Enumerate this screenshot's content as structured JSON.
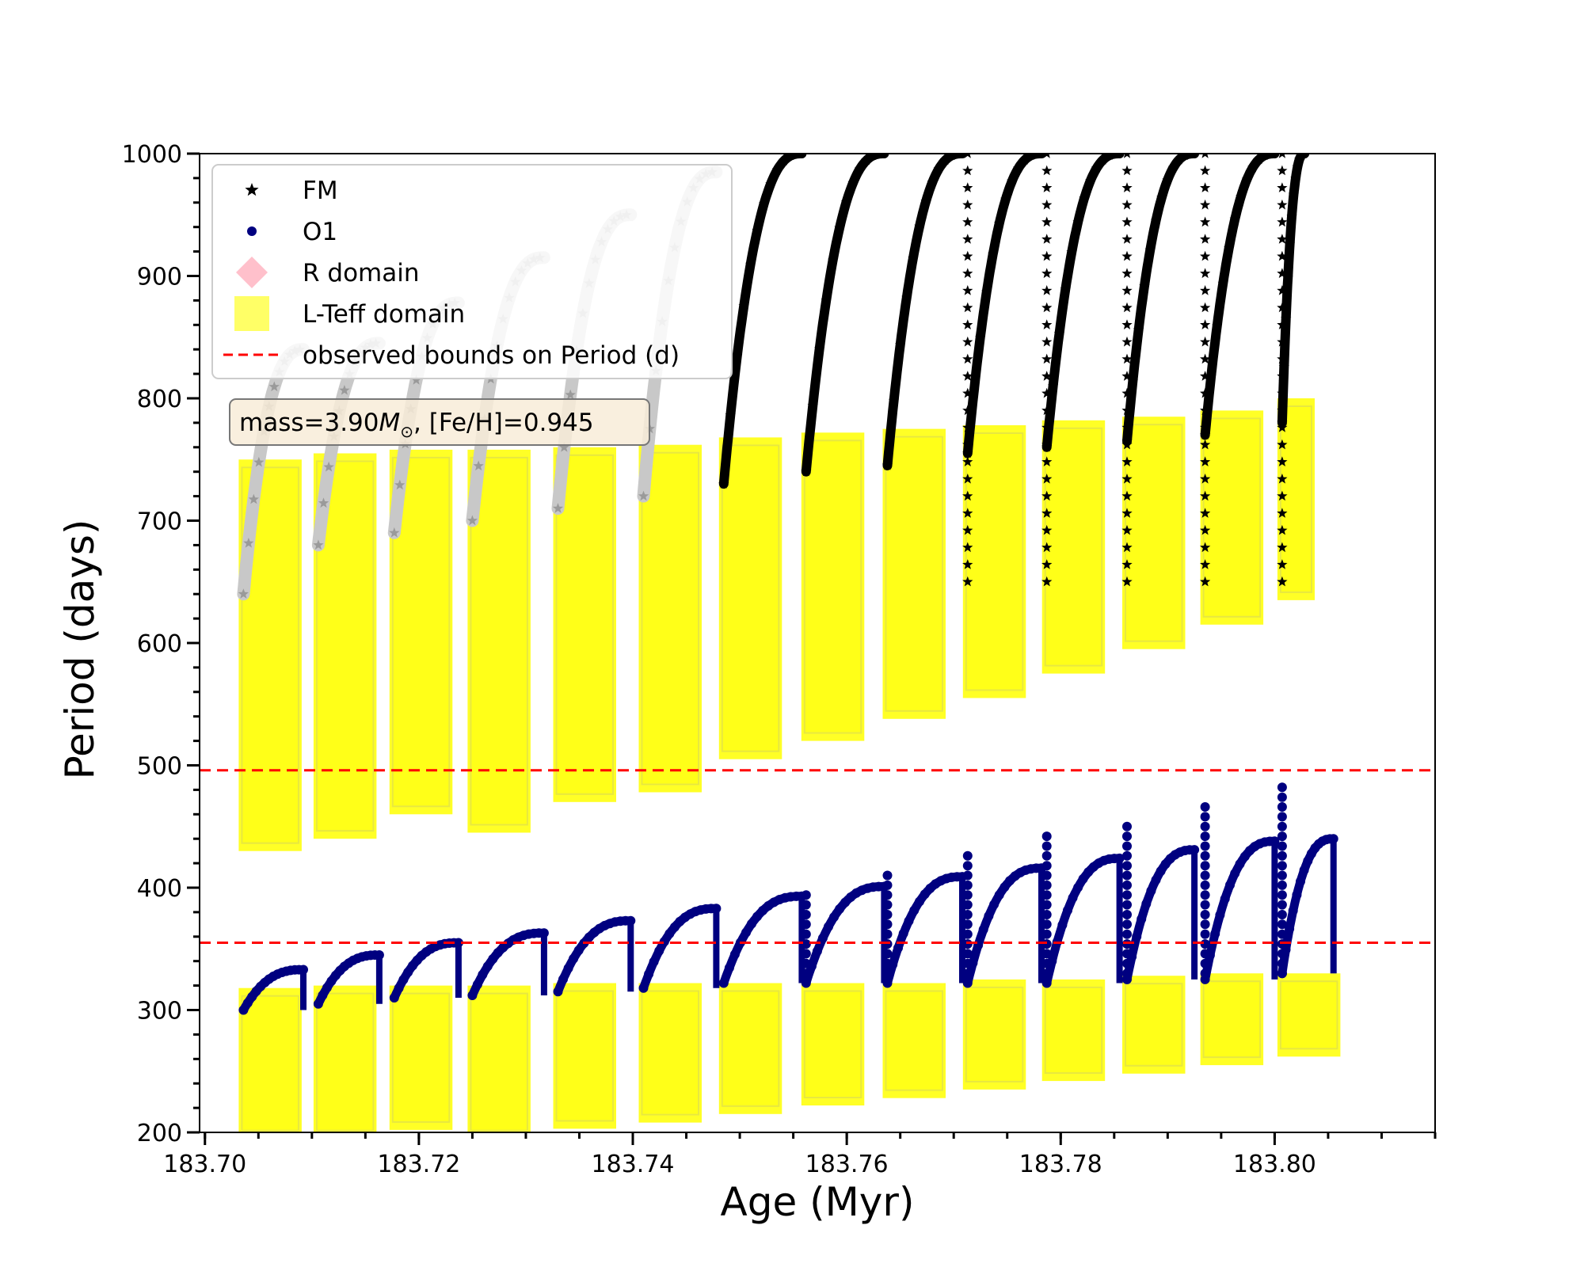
{
  "chart_data": {
    "type": "scatter",
    "xlabel": "Age (Myr)",
    "ylabel": "Period (days)",
    "xlim": [
      183.6995,
      183.815
    ],
    "ylim": [
      200,
      1000
    ],
    "x_ticks": [
      183.7,
      183.72,
      183.74,
      183.76,
      183.78,
      183.8
    ],
    "x_tick_labels": [
      "183.70",
      "183.72",
      "183.74",
      "183.76",
      "183.78",
      "183.80"
    ],
    "y_ticks": [
      200,
      300,
      400,
      500,
      600,
      700,
      800,
      900,
      1000
    ],
    "y_tick_labels": [
      "200",
      "300",
      "400",
      "500",
      "600",
      "700",
      "800",
      "900",
      "1000"
    ],
    "grid": false,
    "legend_position": "top-left",
    "legend": [
      {
        "label": "FM",
        "marker": "star",
        "color": "#000000"
      },
      {
        "label": "O1",
        "marker": "circle",
        "color": "#000080"
      },
      {
        "label": "R domain",
        "marker": "diamond",
        "color": "#ffc0cb"
      },
      {
        "label": "L-Teff domain",
        "marker": "square",
        "color": "#ffff00"
      },
      {
        "label": "observed bounds on Period (d)",
        "marker": "dashed-line",
        "color": "#ff0000"
      }
    ],
    "annotation": {
      "prefix": "mass=3.90",
      "msun": "M",
      "sun_symbol": "⊙",
      "suffix": ", [Fe/H]=0.945"
    },
    "hlines": [
      496,
      355
    ],
    "fm_peaks": [
      {
        "start": 183.7036,
        "end": 183.7092,
        "p0": 640,
        "pmax": 840,
        "ymin": 430,
        "ymax": 750
      },
      {
        "start": 183.7106,
        "end": 183.7163,
        "p0": 680,
        "pmax": 845,
        "ymin": 440,
        "ymax": 755
      },
      {
        "start": 183.7177,
        "end": 183.7237,
        "p0": 690,
        "pmax": 878,
        "ymin": 460,
        "ymax": 758
      },
      {
        "start": 183.725,
        "end": 183.7317,
        "p0": 700,
        "pmax": 915,
        "ymin": 445,
        "ymax": 758
      },
      {
        "start": 183.733,
        "end": 183.7398,
        "p0": 710,
        "pmax": 950,
        "ymin": 470,
        "ymax": 760
      },
      {
        "start": 183.741,
        "end": 183.7478,
        "p0": 720,
        "pmax": 985,
        "ymin": 478,
        "ymax": 762
      },
      {
        "start": 183.7485,
        "end": 183.7558,
        "p0": 730,
        "pmax": 1000,
        "ymin": 505,
        "ymax": 768
      },
      {
        "start": 183.7562,
        "end": 183.7635,
        "p0": 740,
        "pmax": 1000,
        "ymin": 520,
        "ymax": 772
      },
      {
        "start": 183.7638,
        "end": 183.7708,
        "p0": 745,
        "pmax": 1000,
        "ymin": 538,
        "ymax": 775
      },
      {
        "start": 183.7713,
        "end": 183.7782,
        "p0": 755,
        "pmax": 1000,
        "ymin": 555,
        "ymax": 778
      },
      {
        "start": 183.7787,
        "end": 183.7855,
        "p0": 760,
        "pmax": 1000,
        "ymin": 575,
        "ymax": 782
      },
      {
        "start": 183.7862,
        "end": 183.7925,
        "p0": 765,
        "pmax": 1000,
        "ymin": 595,
        "ymax": 785
      },
      {
        "start": 183.7935,
        "end": 183.8,
        "p0": 770,
        "pmax": 1000,
        "ymin": 615,
        "ymax": 790
      },
      {
        "start": 183.8007,
        "end": 183.8028,
        "p0": 780,
        "pmax": 1000,
        "ymin": 635,
        "ymax": 800
      }
    ],
    "o1_peaks": [
      {
        "start": 183.7036,
        "end": 183.7092,
        "p0": 300,
        "pmax": 333,
        "ymin": 195,
        "ymax": 318
      },
      {
        "start": 183.7106,
        "end": 183.7163,
        "p0": 305,
        "pmax": 345,
        "ymin": 195,
        "ymax": 320
      },
      {
        "start": 183.7177,
        "end": 183.7237,
        "p0": 310,
        "pmax": 355,
        "ymin": 202,
        "ymax": 320
      },
      {
        "start": 183.725,
        "end": 183.7317,
        "p0": 312,
        "pmax": 363,
        "ymin": 195,
        "ymax": 320
      },
      {
        "start": 183.733,
        "end": 183.7398,
        "p0": 315,
        "pmax": 373,
        "ymin": 203,
        "ymax": 322
      },
      {
        "start": 183.741,
        "end": 183.7478,
        "p0": 318,
        "pmax": 383,
        "ymin": 208,
        "ymax": 322
      },
      {
        "start": 183.7485,
        "end": 183.7558,
        "p0": 322,
        "pmax": 393,
        "ymin": 215,
        "ymax": 322
      },
      {
        "start": 183.7562,
        "end": 183.7635,
        "p0": 322,
        "pmax": 401,
        "ymin": 222,
        "ymax": 322
      },
      {
        "start": 183.7638,
        "end": 183.7708,
        "p0": 322,
        "pmax": 409,
        "ymin": 228,
        "ymax": 322
      },
      {
        "start": 183.7713,
        "end": 183.7782,
        "p0": 322,
        "pmax": 416,
        "ymin": 235,
        "ymax": 325
      },
      {
        "start": 183.7787,
        "end": 183.7855,
        "p0": 322,
        "pmax": 424,
        "ymin": 242,
        "ymax": 325
      },
      {
        "start": 183.7862,
        "end": 183.7925,
        "p0": 325,
        "pmax": 431,
        "ymin": 248,
        "ymax": 328
      },
      {
        "start": 183.7935,
        "end": 183.8,
        "p0": 325,
        "pmax": 438,
        "ymin": 255,
        "ymax": 330
      },
      {
        "start": 183.8007,
        "end": 183.8055,
        "p0": 330,
        "pmax": 440,
        "ymin": 262,
        "ymax": 330
      }
    ],
    "fm_spikes": [
      {
        "x": 183.7713,
        "ymax": 1000
      },
      {
        "x": 183.7787,
        "ymax": 1000
      },
      {
        "x": 183.7862,
        "ymax": 1000
      },
      {
        "x": 183.7935,
        "ymax": 1000
      },
      {
        "x": 183.8007,
        "ymax": 1000
      }
    ],
    "o1_spikes": [
      {
        "x": 183.7562,
        "ymax": 395
      },
      {
        "x": 183.7638,
        "ymax": 411
      },
      {
        "x": 183.7713,
        "ymax": 430
      },
      {
        "x": 183.7787,
        "ymax": 443
      },
      {
        "x": 183.7862,
        "ymax": 457
      },
      {
        "x": 183.7935,
        "ymax": 472
      },
      {
        "x": 183.8007,
        "ymax": 483
      }
    ]
  },
  "colors": {
    "fm": "#000000",
    "fm_faded": "#c8c8c8",
    "o1": "#000080",
    "r_domain": "#ffc0cb",
    "lteff": "#ffff00",
    "bounds": "#ff0000",
    "annot_bg": "#f8ecd8"
  }
}
